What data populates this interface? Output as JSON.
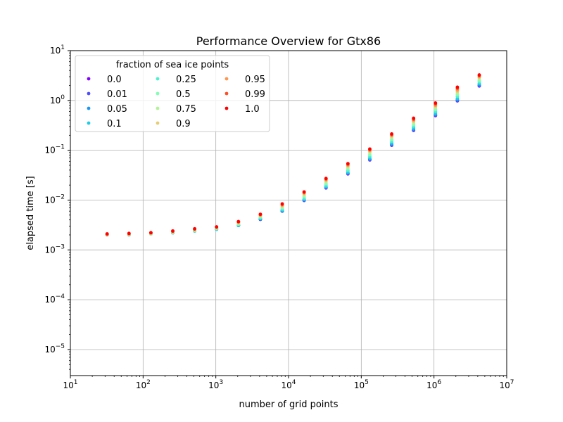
{
  "chart_data": {
    "type": "scatter",
    "title": "Performance Overview for Gtx86",
    "xlabel": "number of grid points",
    "ylabel": "elapsed time [s]",
    "xscale": "log",
    "yscale": "log",
    "xlim": [
      10,
      10000000
    ],
    "ylim": [
      3e-06,
      10
    ],
    "grid": true,
    "legend": {
      "title": "fraction of sea ice points",
      "placement": "top-left",
      "columns": 3
    },
    "x_ticks": [
      {
        "value": 10,
        "base": "10",
        "exp": "1"
      },
      {
        "value": 100,
        "base": "10",
        "exp": "2"
      },
      {
        "value": 1000,
        "base": "10",
        "exp": "3"
      },
      {
        "value": 10000,
        "base": "10",
        "exp": "4"
      },
      {
        "value": 100000,
        "base": "10",
        "exp": "5"
      },
      {
        "value": 1000000,
        "base": "10",
        "exp": "6"
      },
      {
        "value": 10000000,
        "base": "10",
        "exp": "7"
      }
    ],
    "y_ticks": [
      {
        "value": 1e-05,
        "base": "10",
        "exp": "−5"
      },
      {
        "value": 0.0001,
        "base": "10",
        "exp": "−4"
      },
      {
        "value": 0.001,
        "base": "10",
        "exp": "−3"
      },
      {
        "value": 0.01,
        "base": "10",
        "exp": "−2"
      },
      {
        "value": 0.1,
        "base": "10",
        "exp": "−1"
      },
      {
        "value": 1,
        "base": "10",
        "exp": "0"
      },
      {
        "value": 10,
        "base": "10",
        "exp": "1"
      }
    ],
    "x": [
      32,
      64,
      128,
      256,
      512,
      1024,
      2048,
      4096,
      8192,
      16384,
      32768,
      65536,
      131072,
      262144,
      524288,
      1048576,
      2097152,
      4194304
    ],
    "series": [
      {
        "name": "0.0",
        "color": "#8000ff",
        "values": [
          0.002,
          0.002,
          0.0021,
          0.0022,
          0.0024,
          0.0026,
          0.0031,
          0.0041,
          0.006,
          0.0098,
          0.0175,
          0.0335,
          0.064,
          0.126,
          0.25,
          0.495,
          0.98,
          1.95
        ]
      },
      {
        "name": "0.01",
        "color": "#4d4dfc",
        "values": [
          0.002,
          0.002,
          0.0021,
          0.0022,
          0.0024,
          0.0026,
          0.0031,
          0.0041,
          0.006,
          0.0099,
          0.0177,
          0.0339,
          0.065,
          0.128,
          0.254,
          0.502,
          0.995,
          1.98
        ]
      },
      {
        "name": "0.05",
        "color": "#1996f3",
        "values": [
          0.002,
          0.002,
          0.0021,
          0.0022,
          0.0024,
          0.0026,
          0.0031,
          0.0042,
          0.0061,
          0.0101,
          0.0182,
          0.035,
          0.067,
          0.133,
          0.265,
          0.525,
          1.04,
          2.07
        ]
      },
      {
        "name": "0.1",
        "color": "#1ccde5",
        "values": [
          0.002,
          0.002,
          0.0021,
          0.0022,
          0.0024,
          0.0026,
          0.00315,
          0.00425,
          0.0063,
          0.0104,
          0.0188,
          0.0365,
          0.07,
          0.14,
          0.28,
          0.555,
          1.1,
          2.18
        ]
      },
      {
        "name": "0.25",
        "color": "#4cf2ce",
        "values": [
          0.002,
          0.002,
          0.0021,
          0.0022,
          0.0024,
          0.00265,
          0.0032,
          0.0044,
          0.0066,
          0.011,
          0.02,
          0.039,
          0.076,
          0.152,
          0.305,
          0.605,
          1.2,
          2.35
        ]
      },
      {
        "name": "0.5",
        "color": "#80ffb4",
        "values": [
          0.002,
          0.002,
          0.0021,
          0.00225,
          0.00245,
          0.0027,
          0.0033,
          0.0046,
          0.007,
          0.0118,
          0.0215,
          0.042,
          0.082,
          0.165,
          0.33,
          0.655,
          1.3,
          2.5
        ]
      },
      {
        "name": "0.75",
        "color": "#b2f396",
        "values": [
          0.002,
          0.00205,
          0.00212,
          0.00228,
          0.0025,
          0.00275,
          0.0034,
          0.00475,
          0.0073,
          0.0125,
          0.023,
          0.045,
          0.089,
          0.178,
          0.355,
          0.71,
          1.41,
          2.7
        ]
      },
      {
        "name": "0.9",
        "color": "#e6cd73",
        "values": [
          0.00202,
          0.00207,
          0.00215,
          0.00232,
          0.00255,
          0.0028,
          0.0035,
          0.0049,
          0.0076,
          0.0132,
          0.0245,
          0.048,
          0.095,
          0.19,
          0.38,
          0.76,
          1.52,
          2.9
        ]
      },
      {
        "name": "0.95",
        "color": "#ff964e",
        "values": [
          0.00205,
          0.0021,
          0.00218,
          0.00235,
          0.0026,
          0.00285,
          0.0036,
          0.005,
          0.0079,
          0.0138,
          0.0256,
          0.05,
          0.099,
          0.198,
          0.4,
          0.8,
          1.62,
          3.0
        ]
      },
      {
        "name": "0.99",
        "color": "#ff4d27",
        "values": [
          0.00208,
          0.00212,
          0.0022,
          0.00238,
          0.00263,
          0.00288,
          0.00368,
          0.00515,
          0.0082,
          0.0143,
          0.0266,
          0.0525,
          0.103,
          0.207,
          0.42,
          0.85,
          1.75,
          3.15
        ]
      },
      {
        "name": "1.0",
        "color": "#ff0000",
        "values": [
          0.0021,
          0.00215,
          0.00222,
          0.0024,
          0.00265,
          0.0029,
          0.0037,
          0.0052,
          0.0084,
          0.0146,
          0.0272,
          0.054,
          0.106,
          0.213,
          0.44,
          0.89,
          1.85,
          3.25
        ]
      }
    ]
  }
}
